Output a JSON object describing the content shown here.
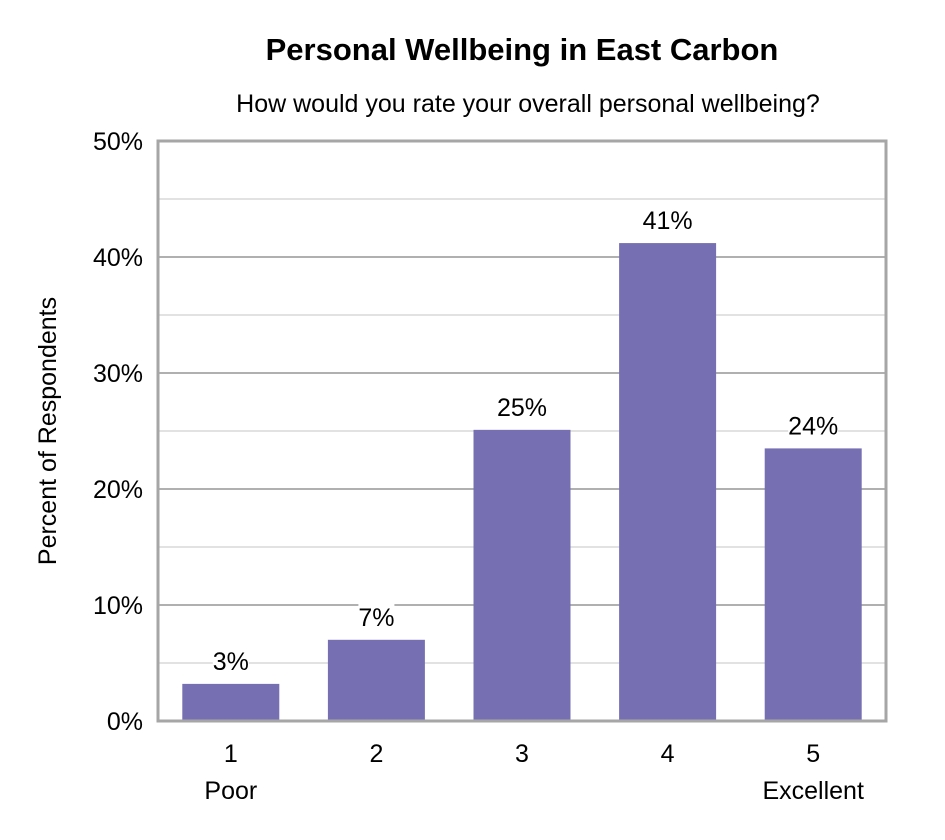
{
  "chart_data": {
    "type": "bar",
    "title": "Personal Wellbeing in East Carbon",
    "subtitle": "How would you rate your overall personal wellbeing?",
    "xlabel": "",
    "ylabel": "Percent of Respondents",
    "ylim": [
      0,
      50
    ],
    "yticks": [
      "0%",
      "10%",
      "20%",
      "30%",
      "40%",
      "50%"
    ],
    "categories": [
      "1",
      "2",
      "3",
      "4",
      "5"
    ],
    "category_sublabels": [
      "Poor",
      "",
      "",
      "",
      "Excellent"
    ],
    "values": [
      3.2,
      7.0,
      25.1,
      41.2,
      23.5
    ],
    "data_labels": [
      "3%",
      "7%",
      "25%",
      "41%",
      "24%"
    ],
    "grid": true,
    "bar_color": "#7670b2",
    "major_grid_color": "#b0b0b0",
    "minor_grid_color": "#d9d9d9",
    "frame_color": "#a6a6a6"
  }
}
